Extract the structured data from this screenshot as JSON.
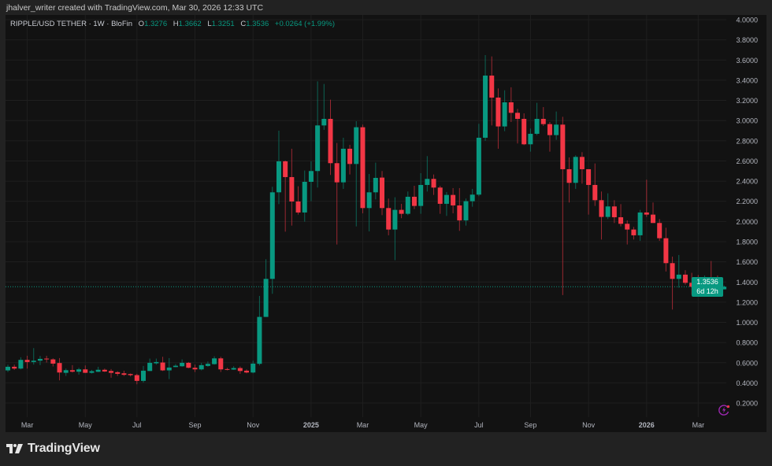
{
  "header": {
    "credit": "jhalver_writer created with TradingView.com, Mar 30, 2026 12:33 UTC"
  },
  "legend": {
    "symbol": "RIPPLE/USD TETHER · 1W · BloFin",
    "open_label": "O",
    "open": "1.3276",
    "high_label": "H",
    "high": "1.3662",
    "low_label": "L",
    "low": "1.3251",
    "close_label": "C",
    "close": "1.3536",
    "change": "+0.0264 (+1.99%)"
  },
  "price_tag": {
    "price": "1.3536",
    "countdown": "6d 12h"
  },
  "brand": {
    "name": "TradingView"
  },
  "colors": {
    "up": "#089981",
    "down": "#f23645",
    "background": "#121212",
    "grid": "#1f1f1f",
    "alert_icon": "#9c27b0"
  },
  "icons": {
    "alert": "lightning-icon",
    "logo": "tradingview-logo"
  },
  "chart_data": {
    "type": "candlestick",
    "interval": "1W",
    "ylim": [
      0.06,
      4.047
    ],
    "grid": true,
    "y_scale": "linear",
    "y_ticks": [
      "4.0000",
      "3.8000",
      "3.6000",
      "3.4000",
      "3.2000",
      "3.0000",
      "2.8000",
      "2.6000",
      "2.4000",
      "2.2000",
      "2.0000",
      "1.8000",
      "1.6000",
      "1.4000",
      "1.2000",
      "1.0000",
      "0.8000",
      "0.6000",
      "0.4000",
      "0.2000"
    ],
    "x_ticks": [
      {
        "label": "Mar",
        "bold": false
      },
      {
        "label": "May",
        "bold": false
      },
      {
        "label": "Jul",
        "bold": false
      },
      {
        "label": "Sep",
        "bold": false
      },
      {
        "label": "Nov",
        "bold": false
      },
      {
        "label": "2025",
        "bold": true
      },
      {
        "label": "Mar",
        "bold": false
      },
      {
        "label": "May",
        "bold": false
      },
      {
        "label": "Jul",
        "bold": false
      },
      {
        "label": "Sep",
        "bold": false
      },
      {
        "label": "Nov",
        "bold": false
      },
      {
        "label": "2026",
        "bold": true
      },
      {
        "label": "Mar",
        "bold": false
      }
    ],
    "last_price": 1.3536,
    "candles_fields": [
      "date",
      "open",
      "high",
      "low",
      "close"
    ],
    "candles": [
      [
        "2024-02-12",
        0.524,
        0.581,
        0.508,
        0.56
      ],
      [
        "2024-02-19",
        0.56,
        0.581,
        0.529,
        0.542
      ],
      [
        "2024-02-26",
        0.542,
        0.654,
        0.534,
        0.628
      ],
      [
        "2024-03-04",
        0.628,
        0.669,
        0.542,
        0.607
      ],
      [
        "2024-03-11",
        0.607,
        0.745,
        0.581,
        0.62
      ],
      [
        "2024-03-18",
        0.62,
        0.667,
        0.576,
        0.638
      ],
      [
        "2024-03-25",
        0.641,
        0.669,
        0.602,
        0.633
      ],
      [
        "2024-04-01",
        0.633,
        0.643,
        0.563,
        0.591
      ],
      [
        "2024-04-08",
        0.597,
        0.646,
        0.425,
        0.503
      ],
      [
        "2024-04-15",
        0.5,
        0.542,
        0.469,
        0.526
      ],
      [
        "2024-04-22",
        0.526,
        0.576,
        0.503,
        0.511
      ],
      [
        "2024-04-29",
        0.511,
        0.55,
        0.482,
        0.534
      ],
      [
        "2024-05-06",
        0.534,
        0.573,
        0.498,
        0.5
      ],
      [
        "2024-05-13",
        0.5,
        0.529,
        0.493,
        0.516
      ],
      [
        "2024-05-20",
        0.51,
        0.56,
        0.508,
        0.53
      ],
      [
        "2024-05-27",
        0.53,
        0.542,
        0.508,
        0.513
      ],
      [
        "2024-06-03",
        0.518,
        0.537,
        0.451,
        0.5
      ],
      [
        "2024-06-10",
        0.506,
        0.516,
        0.469,
        0.49
      ],
      [
        "2024-06-17",
        0.495,
        0.521,
        0.469,
        0.48
      ],
      [
        "2024-06-24",
        0.488,
        0.493,
        0.464,
        0.477
      ],
      [
        "2024-07-01",
        0.477,
        0.49,
        0.386,
        0.42
      ],
      [
        "2024-07-08",
        0.42,
        0.568,
        0.404,
        0.521
      ],
      [
        "2024-07-15",
        0.518,
        0.641,
        0.518,
        0.599
      ],
      [
        "2024-07-22",
        0.594,
        0.641,
        0.581,
        0.607
      ],
      [
        "2024-07-29",
        0.602,
        0.659,
        0.518,
        0.524
      ],
      [
        "2024-08-05",
        0.524,
        0.646,
        0.438,
        0.552
      ],
      [
        "2024-08-12",
        0.557,
        0.586,
        0.555,
        0.57
      ],
      [
        "2024-08-19",
        0.565,
        0.633,
        0.56,
        0.599
      ],
      [
        "2024-08-26",
        0.599,
        0.607,
        0.545,
        0.55
      ],
      [
        "2024-09-02",
        0.55,
        0.581,
        0.508,
        0.534
      ],
      [
        "2024-09-09",
        0.534,
        0.599,
        0.524,
        0.576
      ],
      [
        "2024-09-16",
        0.568,
        0.612,
        0.56,
        0.589
      ],
      [
        "2024-09-23",
        0.586,
        0.664,
        0.581,
        0.643
      ],
      [
        "2024-09-30",
        0.643,
        0.659,
        0.508,
        0.534
      ],
      [
        "2024-10-07",
        0.537,
        0.55,
        0.524,
        0.532
      ],
      [
        "2024-10-14",
        0.532,
        0.565,
        0.529,
        0.547
      ],
      [
        "2024-10-21",
        0.547,
        0.563,
        0.49,
        0.518
      ],
      [
        "2024-10-28",
        0.521,
        0.534,
        0.495,
        0.503
      ],
      [
        "2024-11-04",
        0.503,
        0.62,
        0.495,
        0.591
      ],
      [
        "2024-11-11",
        0.589,
        1.262,
        0.573,
        1.054
      ],
      [
        "2024-11-18",
        1.054,
        1.626,
        1.054,
        1.431
      ],
      [
        "2024-11-25",
        1.431,
        2.344,
        1.283,
        2.289
      ],
      [
        "2024-12-02",
        2.289,
        2.9,
        2.172,
        2.596
      ],
      [
        "2024-12-09",
        2.596,
        2.604,
        1.899,
        2.44
      ],
      [
        "2024-12-16",
        2.44,
        2.721,
        1.959,
        2.198
      ],
      [
        "2024-12-23",
        2.198,
        2.349,
        2.068,
        2.089
      ],
      [
        "2024-12-30",
        2.089,
        2.505,
        1.998,
        2.393
      ],
      [
        "2025-01-06",
        2.393,
        2.596,
        2.201,
        2.5
      ],
      [
        "2025-01-13",
        2.5,
        3.389,
        2.336,
        2.952
      ],
      [
        "2025-01-20",
        2.952,
        3.363,
        2.908,
        3.017
      ],
      [
        "2025-01-27",
        3.017,
        3.207,
        2.461,
        2.578
      ],
      [
        "2025-02-03",
        2.578,
        2.778,
        1.772,
        2.388
      ],
      [
        "2025-02-10",
        2.388,
        2.83,
        2.323,
        2.721
      ],
      [
        "2025-02-17",
        2.721,
        2.76,
        2.466,
        2.57
      ],
      [
        "2025-02-24",
        2.57,
        2.994,
        1.951,
        2.934
      ],
      [
        "2025-03-03",
        2.934,
        2.96,
        2.081,
        2.133
      ],
      [
        "2025-03-10",
        2.133,
        2.471,
        1.902,
        2.289
      ],
      [
        "2025-03-17",
        2.289,
        2.583,
        2.219,
        2.432
      ],
      [
        "2025-03-24",
        2.435,
        2.5,
        2.063,
        2.133
      ],
      [
        "2025-03-31",
        2.133,
        2.227,
        1.863,
        1.92
      ],
      [
        "2025-04-07",
        1.92,
        2.24,
        1.616,
        2.115
      ],
      [
        "2025-04-14",
        2.115,
        2.175,
        2.032,
        2.076
      ],
      [
        "2025-04-21",
        2.076,
        2.297,
        2.063,
        2.245
      ],
      [
        "2025-04-28",
        2.245,
        2.354,
        2.123,
        2.154
      ],
      [
        "2025-05-05",
        2.154,
        2.479,
        2.076,
        2.362
      ],
      [
        "2025-05-12",
        2.362,
        2.648,
        2.297,
        2.422
      ],
      [
        "2025-05-19",
        2.422,
        2.466,
        2.263,
        2.336
      ],
      [
        "2025-05-26",
        2.336,
        2.354,
        2.076,
        2.175
      ],
      [
        "2025-06-02",
        2.175,
        2.292,
        2.055,
        2.263
      ],
      [
        "2025-06-09",
        2.263,
        2.331,
        2.081,
        2.159
      ],
      [
        "2025-06-16",
        2.159,
        2.331,
        1.907,
        2.011
      ],
      [
        "2025-06-23",
        2.011,
        2.227,
        1.959,
        2.201
      ],
      [
        "2025-06-30",
        2.201,
        2.323,
        2.146,
        2.266
      ],
      [
        "2025-07-07",
        2.266,
        2.968,
        2.25,
        2.83
      ],
      [
        "2025-07-14",
        2.83,
        3.649,
        2.799,
        3.446
      ],
      [
        "2025-07-21",
        3.446,
        3.636,
        2.952,
        3.228
      ],
      [
        "2025-07-28",
        3.228,
        3.319,
        2.721,
        2.942
      ],
      [
        "2025-08-04",
        2.942,
        3.3,
        2.895,
        3.181
      ],
      [
        "2025-08-11",
        3.181,
        3.33,
        2.986,
        3.077
      ],
      [
        "2025-08-18",
        3.077,
        3.116,
        2.773,
        3.017
      ],
      [
        "2025-08-25",
        3.017,
        3.072,
        2.757,
        2.765
      ],
      [
        "2025-09-01",
        2.765,
        2.921,
        2.692,
        2.869
      ],
      [
        "2025-09-08",
        2.869,
        3.176,
        2.856,
        3.017
      ],
      [
        "2025-09-15",
        3.017,
        3.134,
        2.947,
        2.965
      ],
      [
        "2025-09-22",
        2.965,
        2.986,
        2.692,
        2.856
      ],
      [
        "2025-09-29",
        2.856,
        3.09,
        2.809,
        2.96
      ],
      [
        "2025-10-06",
        2.96,
        3.038,
        1.27,
        2.518
      ],
      [
        "2025-10-13",
        2.518,
        2.635,
        2.188,
        2.383
      ],
      [
        "2025-10-20",
        2.383,
        2.656,
        2.323,
        2.64
      ],
      [
        "2025-10-27",
        2.64,
        2.687,
        2.375,
        2.518
      ],
      [
        "2025-11-03",
        2.518,
        2.518,
        2.068,
        2.362
      ],
      [
        "2025-11-10",
        2.362,
        2.575,
        2.154,
        2.211
      ],
      [
        "2025-11-17",
        2.211,
        2.297,
        1.821,
        2.045
      ],
      [
        "2025-11-24",
        2.045,
        2.279,
        2.024,
        2.149
      ],
      [
        "2025-12-01",
        2.149,
        2.211,
        1.985,
        2.042
      ],
      [
        "2025-12-08",
        2.042,
        2.172,
        1.951,
        1.977
      ],
      [
        "2025-12-15",
        1.977,
        2.011,
        1.772,
        1.92
      ],
      [
        "2025-12-22",
        1.92,
        1.946,
        1.821,
        1.863
      ],
      [
        "2025-12-29",
        1.863,
        2.115,
        1.808,
        2.089
      ],
      [
        "2026-01-05",
        2.089,
        2.414,
        2.045,
        2.068
      ],
      [
        "2026-01-12",
        2.068,
        2.188,
        1.985,
        1.985
      ],
      [
        "2026-01-19",
        1.985,
        2.024,
        1.808,
        1.834
      ],
      [
        "2026-01-26",
        1.834,
        1.938,
        1.504,
        1.587
      ],
      [
        "2026-02-02",
        1.587,
        1.652,
        1.127,
        1.431
      ],
      [
        "2026-02-09",
        1.431,
        1.668,
        1.343,
        1.473
      ],
      [
        "2026-02-16",
        1.473,
        1.517,
        1.374,
        1.392
      ],
      [
        "2026-02-23",
        1.392,
        1.491,
        1.275,
        1.353
      ],
      [
        "2026-03-02",
        1.353,
        1.47,
        1.33,
        1.34
      ],
      [
        "2026-03-09",
        1.34,
        1.465,
        1.335,
        1.447
      ],
      [
        "2026-03-16",
        1.447,
        1.608,
        1.379,
        1.387
      ],
      [
        "2026-03-23",
        1.382,
        1.465,
        1.296,
        1.33
      ],
      [
        "2026-03-30",
        1.3276,
        1.3662,
        1.3251,
        1.3536
      ]
    ]
  }
}
